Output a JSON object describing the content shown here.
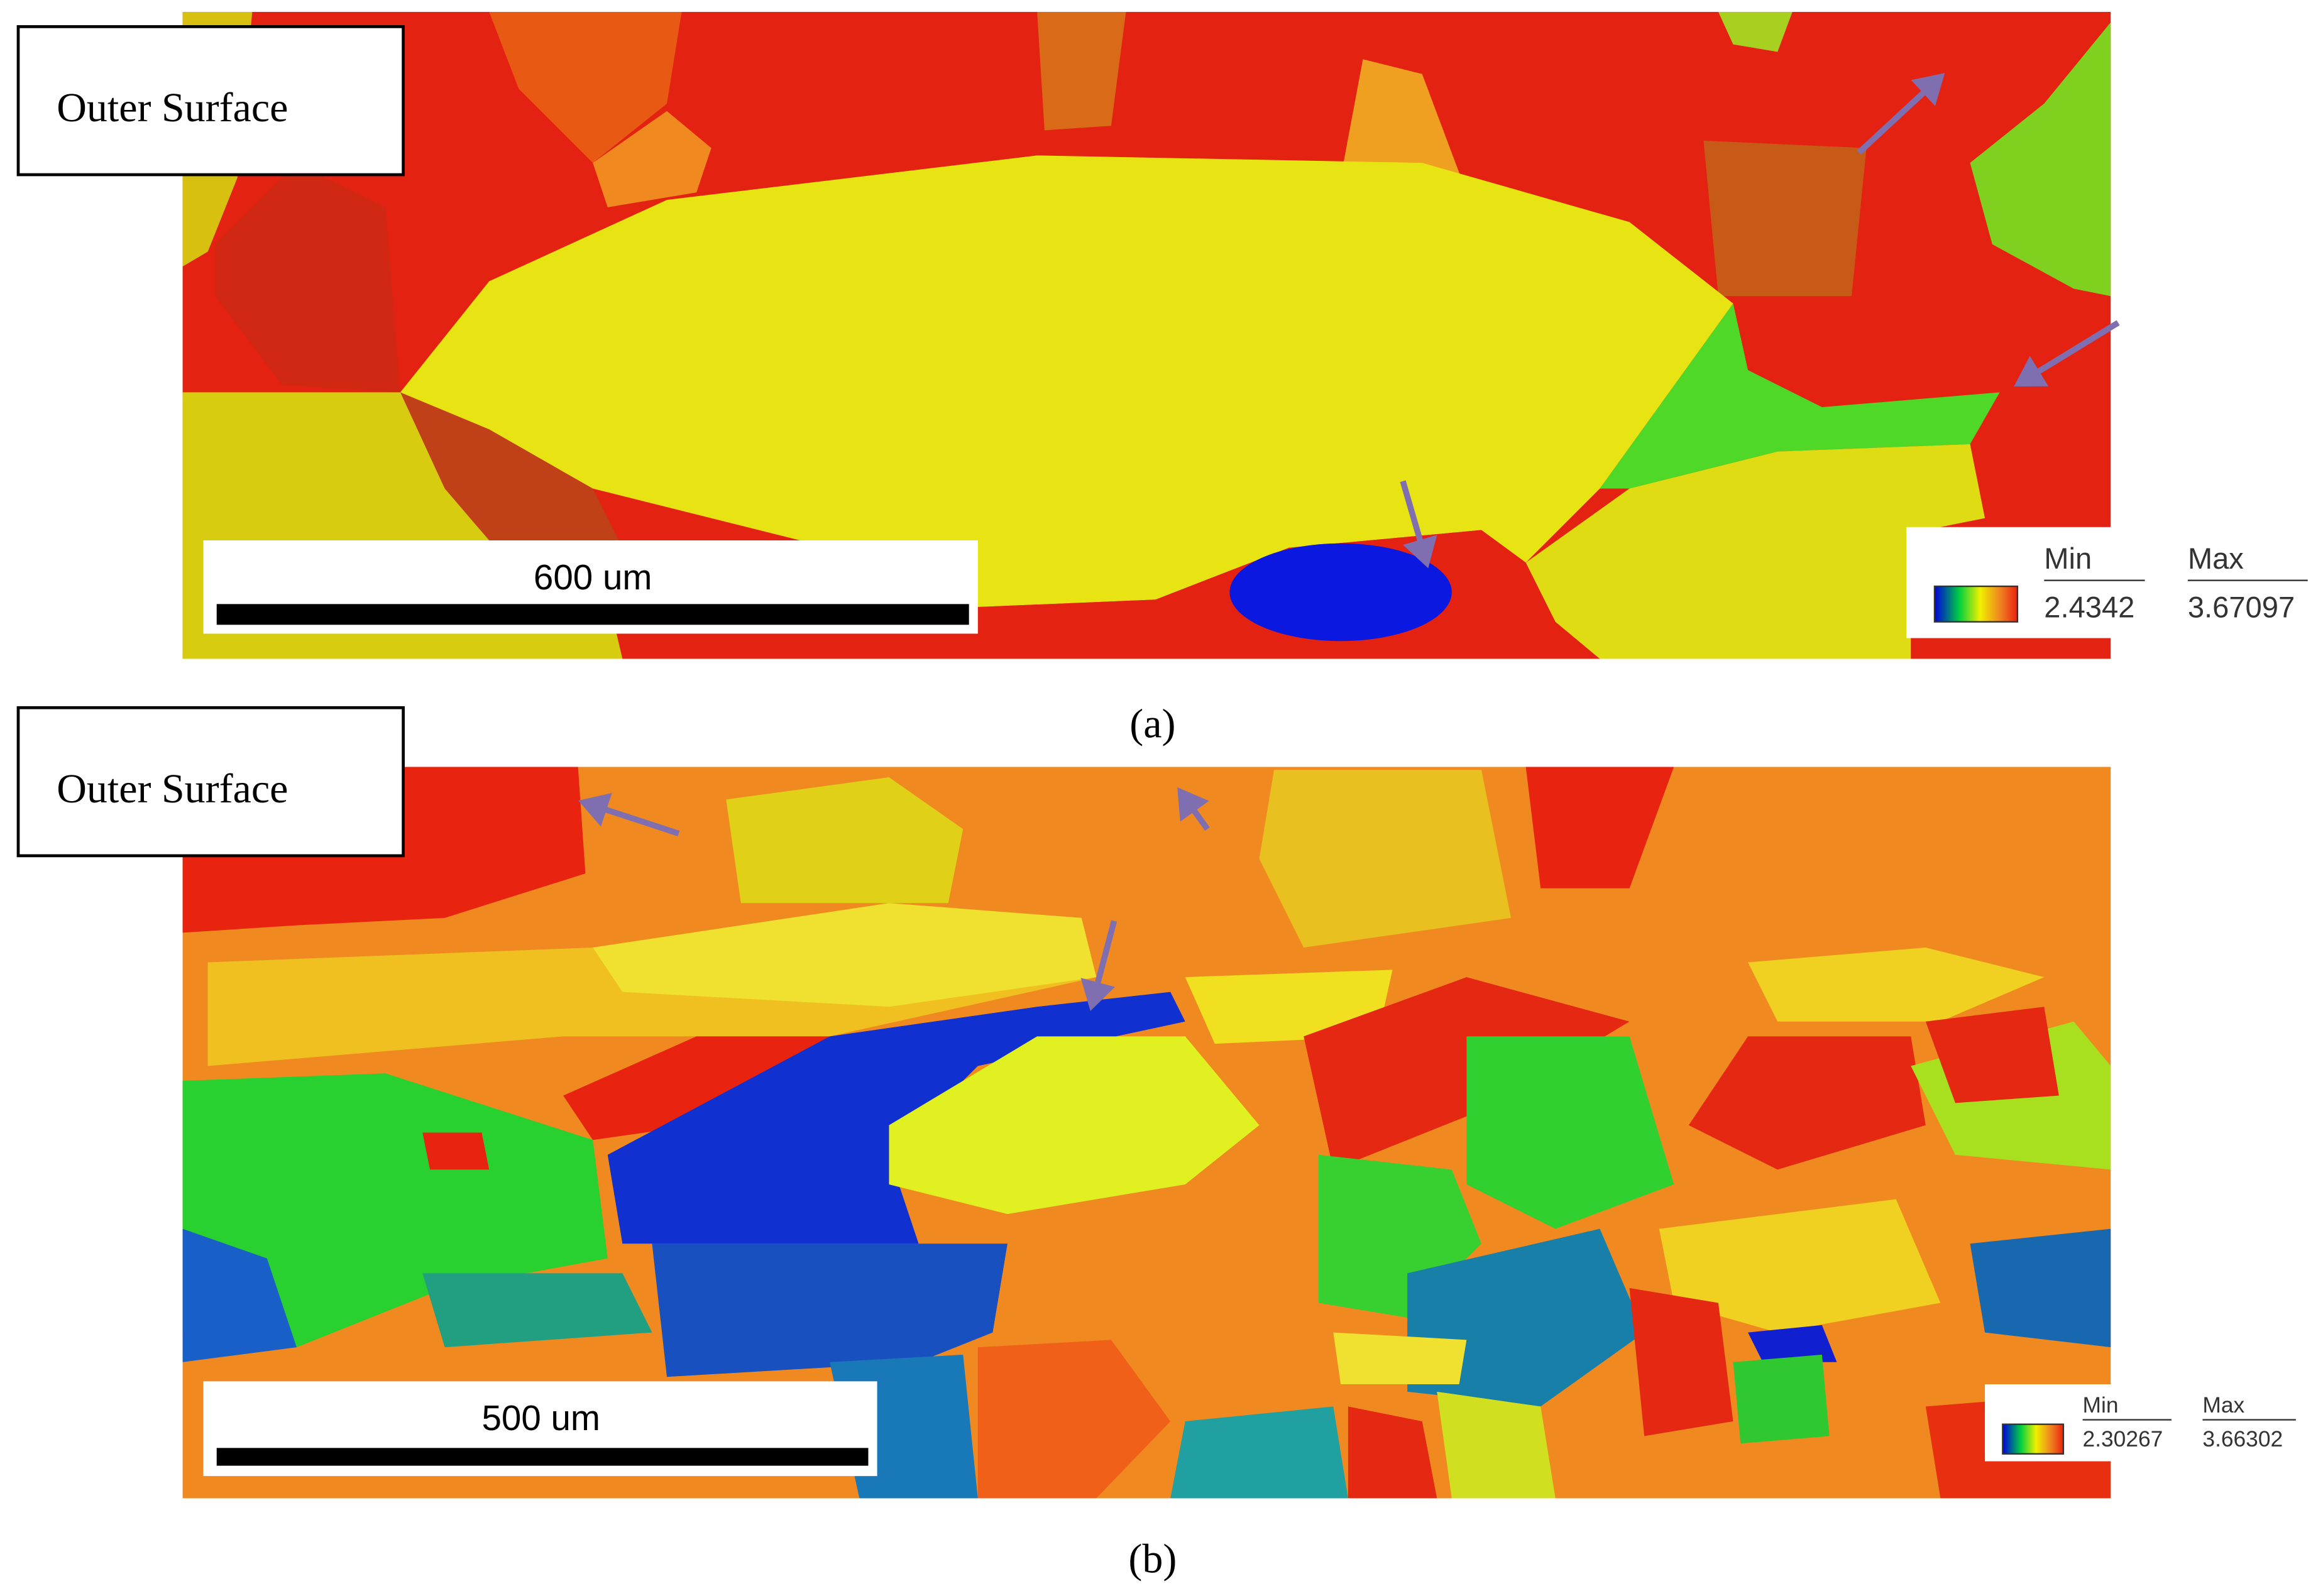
{
  "panels": [
    {
      "label": "Outer Surface",
      "scale_bar": "600 um",
      "legend": {
        "min_label": "Min",
        "max_label": "Max",
        "min": "2.4342",
        "max": "3.67097"
      },
      "caption": "(a)"
    },
    {
      "label": "Outer Surface",
      "scale_bar": "500 um",
      "legend": {
        "min_label": "Min",
        "max_label": "Max",
        "min": "2.30267",
        "max": "3.66302"
      },
      "caption": "(b)"
    }
  ]
}
